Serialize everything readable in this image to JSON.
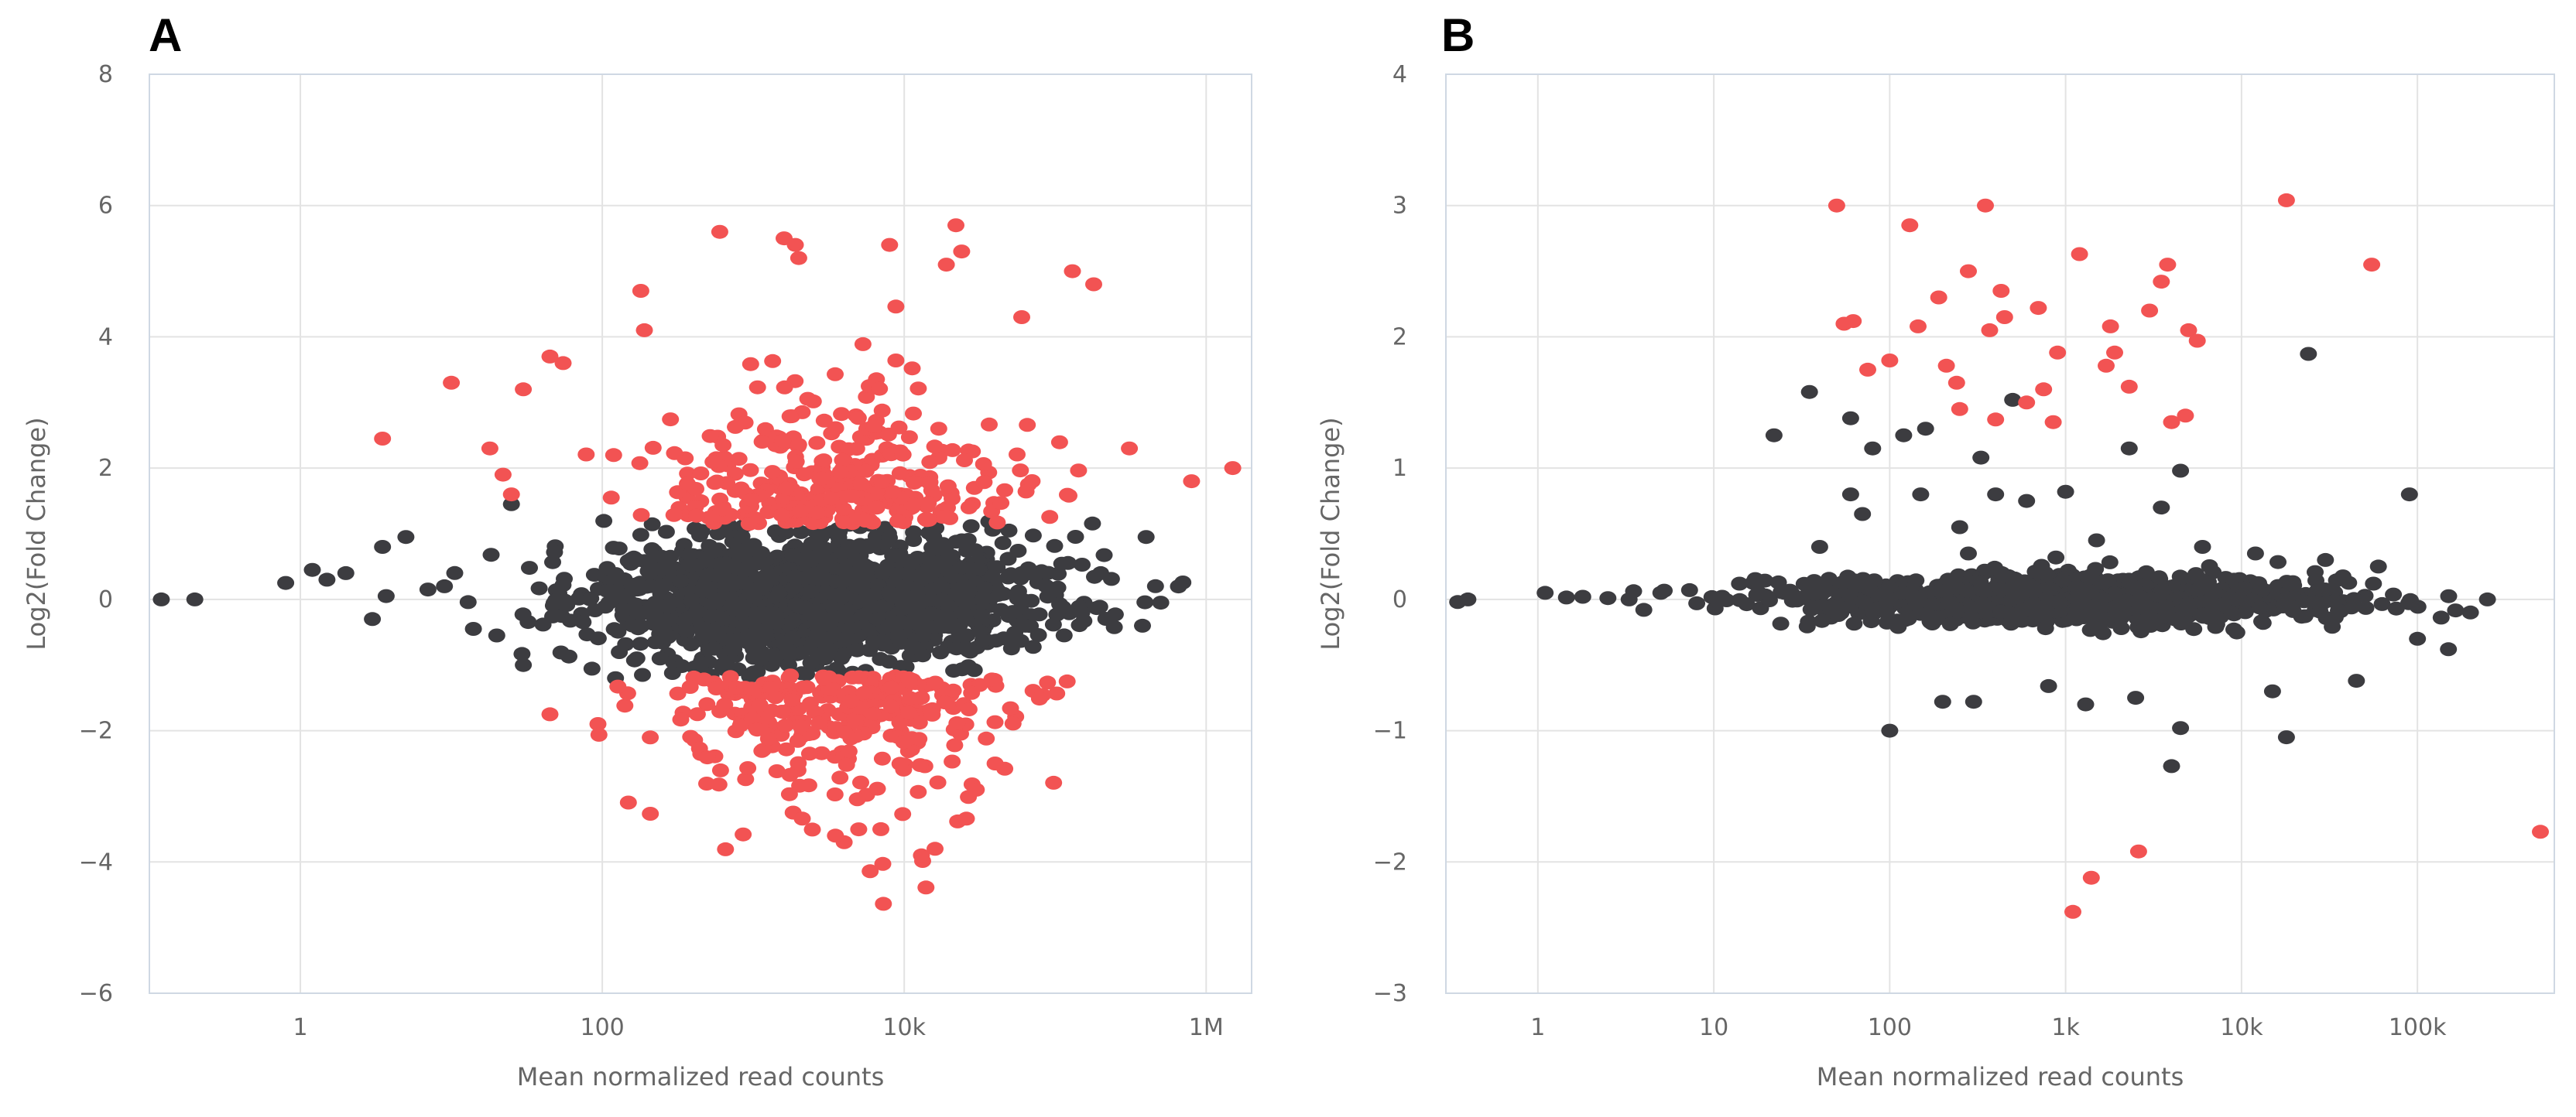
{
  "chart_data": [
    {
      "type": "scatter",
      "panel": "A",
      "xlabel": "Mean normalized read counts",
      "ylabel": "Log2(Fold Change)",
      "x_scale": "log10",
      "xlim": [
        0.1,
        2000000
      ],
      "ylim": [
        -6,
        8
      ],
      "x_ticks": [
        {
          "value": 1,
          "label": "1"
        },
        {
          "value": 100,
          "label": "100"
        },
        {
          "value": 10000,
          "label": "10k"
        },
        {
          "value": 1000000,
          "label": "1M"
        }
      ],
      "y_ticks": [
        -6,
        -4,
        -2,
        0,
        2,
        4,
        6,
        8
      ],
      "colors": {
        "significant": "#f25353",
        "not_significant": "#3c3c40"
      },
      "series": [
        {
          "name": "not_significant",
          "generator": {
            "seed": 11,
            "count": 1500,
            "log_x_center": 3.4,
            "log_x_spread": 0.75,
            "y_spread": 0.48,
            "y_clip": 1.2
          }
        },
        {
          "name": "significant",
          "generator": {
            "seed": 23,
            "count": 620,
            "log_x_center": 3.5,
            "log_x_spread": 0.6,
            "y_min_abs": 1.15,
            "y_spread": 0.6
          }
        }
      ],
      "fixed_points": {
        "not_significant": [
          [
            0.12,
            0.0
          ],
          [
            0.2,
            0.0
          ],
          [
            0.8,
            0.25
          ],
          [
            1.2,
            0.45
          ],
          [
            1.5,
            0.3
          ],
          [
            2.0,
            0.4
          ],
          [
            3.0,
            -0.3
          ],
          [
            3.5,
            0.8
          ],
          [
            3.7,
            0.05
          ],
          [
            5,
            0.95
          ],
          [
            7,
            0.15
          ],
          [
            9,
            0.2
          ],
          [
            14,
            -0.45
          ],
          [
            20,
            -0.55
          ],
          [
            25,
            1.45
          ],
          [
            30,
            -1.0
          ],
          [
            400000,
            0.95
          ],
          [
            500000,
            -0.05
          ],
          [
            200000,
            0.4
          ],
          [
            150000,
            -0.2
          ],
          [
            60000,
            0.4
          ]
        ],
        "significant": [
          [
            3.5,
            2.45
          ],
          [
            10,
            3.3
          ],
          [
            18,
            2.3
          ],
          [
            22,
            1.9
          ],
          [
            25,
            1.6
          ],
          [
            30,
            3.2
          ],
          [
            45,
            3.7
          ],
          [
            55,
            3.6
          ],
          [
            45,
            -1.75
          ],
          [
            180,
            4.7
          ],
          [
            190,
            4.1
          ],
          [
            600,
            5.6
          ],
          [
            1600,
            5.5
          ],
          [
            1900,
            5.4
          ],
          [
            2000,
            5.2
          ],
          [
            8000,
            5.4
          ],
          [
            22000,
            5.7
          ],
          [
            19000,
            5.1
          ],
          [
            24000,
            5.3
          ],
          [
            130000,
            5.0
          ],
          [
            180000,
            4.8
          ],
          [
            60000,
            4.3
          ],
          [
            800000,
            1.8
          ],
          [
            1500000,
            2.0
          ],
          [
            310000,
            2.3
          ],
          [
            4000,
            -3.7
          ],
          [
            13000,
            -3.9
          ],
          [
            16000,
            -3.8
          ],
          [
            3500,
            -3.6
          ],
          [
            120000,
            -1.25
          ],
          [
            40000,
            -2.5
          ],
          [
            30000,
            -2.9
          ],
          [
            7000,
            -3.5
          ]
        ]
      }
    },
    {
      "type": "scatter",
      "panel": "B",
      "xlabel": "Mean normalized read counts",
      "ylabel": "Log2(Fold Change)",
      "x_scale": "log10",
      "xlim": [
        0.3,
        600000
      ],
      "ylim": [
        -3,
        4
      ],
      "x_ticks": [
        {
          "value": 1,
          "label": "1"
        },
        {
          "value": 10,
          "label": "10"
        },
        {
          "value": 100,
          "label": "100"
        },
        {
          "value": 1000,
          "label": "1k"
        },
        {
          "value": 10000,
          "label": "10k"
        },
        {
          "value": 100000,
          "label": "100k"
        }
      ],
      "y_ticks": [
        -3,
        -2,
        -1,
        0,
        1,
        2,
        3,
        4
      ],
      "colors": {
        "significant": "#f25353",
        "not_significant": "#3c3c40"
      },
      "series": [
        {
          "name": "not_significant",
          "generator": {
            "seed": 41,
            "count": 1200,
            "log_x_center": 3.0,
            "log_x_spread": 0.75,
            "y_spread": 0.09,
            "y_clip": 0.5
          }
        },
        {
          "name": "significant",
          "generator": {
            "seed": 57,
            "count": 0
          }
        }
      ],
      "fixed_points": {
        "not_significant": [
          [
            0.35,
            -0.02
          ],
          [
            0.4,
            0.0
          ],
          [
            1.1,
            0.05
          ],
          [
            1.8,
            0.02
          ],
          [
            2.5,
            0.01
          ],
          [
            3.3,
            0.0
          ],
          [
            4,
            -0.08
          ],
          [
            5,
            0.05
          ],
          [
            8,
            -0.03
          ],
          [
            14,
            0.12
          ],
          [
            18,
            0.05
          ],
          [
            22,
            1.25
          ],
          [
            35,
            1.58
          ],
          [
            60,
            1.38
          ],
          [
            80,
            1.15
          ],
          [
            120,
            1.25
          ],
          [
            160,
            1.3
          ],
          [
            330,
            1.08
          ],
          [
            500,
            1.52
          ],
          [
            2300,
            1.15
          ],
          [
            4500,
            0.98
          ],
          [
            24000,
            1.87
          ],
          [
            90000,
            0.8
          ],
          [
            100,
            -1.0
          ],
          [
            200,
            -0.78
          ],
          [
            300,
            -0.78
          ],
          [
            800,
            -0.66
          ],
          [
            1300,
            -0.8
          ],
          [
            2500,
            -0.75
          ],
          [
            4000,
            -1.27
          ],
          [
            4500,
            -0.98
          ],
          [
            18000,
            -1.05
          ],
          [
            15000,
            -0.7
          ],
          [
            45000,
            -0.62
          ],
          [
            100000,
            -0.3
          ],
          [
            150000,
            -0.38
          ],
          [
            200000,
            -0.1
          ],
          [
            250000,
            0.0
          ],
          [
            40,
            0.4
          ],
          [
            60,
            0.8
          ],
          [
            70,
            0.65
          ],
          [
            150,
            0.8
          ],
          [
            250,
            0.55
          ],
          [
            280,
            0.35
          ],
          [
            400,
            0.8
          ],
          [
            600,
            0.75
          ],
          [
            1000,
            0.82
          ],
          [
            1500,
            0.45
          ],
          [
            3500,
            0.7
          ],
          [
            6000,
            0.4
          ],
          [
            12000,
            0.35
          ],
          [
            30000,
            0.3
          ],
          [
            60000,
            0.25
          ]
        ],
        "significant": [
          [
            50,
            3.0
          ],
          [
            55,
            2.1
          ],
          [
            62,
            2.12
          ],
          [
            75,
            1.75
          ],
          [
            100,
            1.82
          ],
          [
            130,
            2.85
          ],
          [
            145,
            2.08
          ],
          [
            190,
            2.3
          ],
          [
            210,
            1.78
          ],
          [
            240,
            1.65
          ],
          [
            250,
            1.45
          ],
          [
            280,
            2.5
          ],
          [
            350,
            3.0
          ],
          [
            370,
            2.05
          ],
          [
            400,
            1.37
          ],
          [
            430,
            2.35
          ],
          [
            450,
            2.15
          ],
          [
            600,
            1.5
          ],
          [
            700,
            2.22
          ],
          [
            750,
            1.6
          ],
          [
            850,
            1.35
          ],
          [
            900,
            1.88
          ],
          [
            1200,
            2.63
          ],
          [
            1700,
            1.78
          ],
          [
            1800,
            2.08
          ],
          [
            1900,
            1.88
          ],
          [
            2300,
            1.62
          ],
          [
            3000,
            2.2
          ],
          [
            3500,
            2.42
          ],
          [
            3800,
            2.55
          ],
          [
            4000,
            1.35
          ],
          [
            4800,
            1.4
          ],
          [
            5000,
            2.05
          ],
          [
            5600,
            1.97
          ],
          [
            18000,
            3.04
          ],
          [
            55000,
            2.55
          ],
          [
            500000,
            -1.77
          ],
          [
            1100,
            -2.38
          ],
          [
            1400,
            -2.12
          ],
          [
            2600,
            -1.92
          ]
        ]
      }
    }
  ]
}
